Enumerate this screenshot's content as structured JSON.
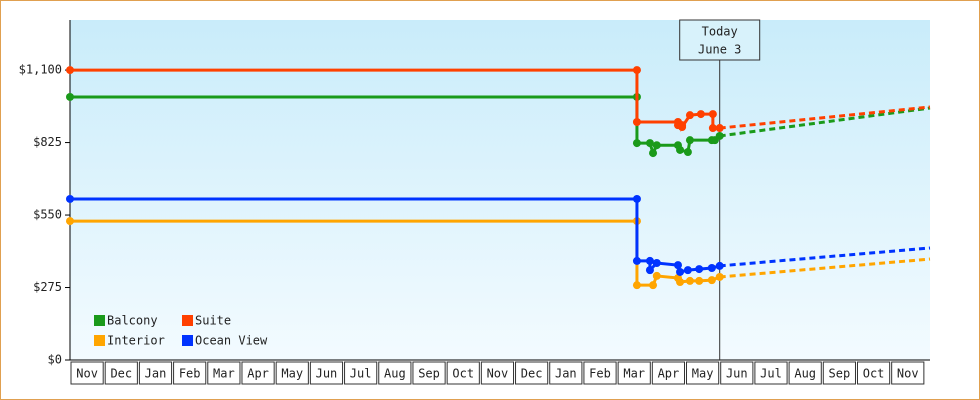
{
  "chart_data": {
    "type": "line",
    "xlim": [
      0,
      25.15
    ],
    "ylim": [
      0,
      1290
    ],
    "yticks": [
      {
        "value": 0,
        "label": "$0"
      },
      {
        "value": 275,
        "label": "$275"
      },
      {
        "value": 550,
        "label": "$550"
      },
      {
        "value": 825,
        "label": "$825"
      },
      {
        "value": 1100,
        "label": "$1,100"
      }
    ],
    "categories": [
      "Nov",
      "Dec",
      "Jan",
      "Feb",
      "Mar",
      "Apr",
      "May",
      "Jun",
      "Jul",
      "Aug",
      "Sep",
      "Oct",
      "Nov",
      "Dec",
      "Jan",
      "Feb",
      "Mar",
      "Apr",
      "May",
      "Jun",
      "Jul",
      "Aug",
      "Sep",
      "Oct",
      "Nov"
    ],
    "annotation": {
      "x": 19.0,
      "lines": [
        "Today",
        "June 3"
      ]
    },
    "legend": "lower left",
    "series": [
      {
        "name": "Balcony",
        "color": "#1a9a1a",
        "x": [
          0,
          16.58,
          16.58,
          16.96,
          17.05,
          17.16,
          17.78,
          17.84,
          18.07,
          18.13,
          18.77,
          18.86,
          19.0
        ],
        "values": [
          998,
          998,
          823,
          823,
          785,
          815,
          815,
          797,
          789,
          834,
          834,
          834,
          850
        ],
        "forecast_x": [
          19.0,
          25.15
        ],
        "forecast_values": [
          850,
          956
        ]
      },
      {
        "name": "Suite",
        "color": "#ff4000",
        "x": [
          0,
          16.58,
          16.58,
          17.78,
          17.78,
          17.9,
          17.9,
          18.13,
          18.45,
          18.8,
          18.8,
          19.0
        ],
        "values": [
          1100,
          1100,
          903,
          903,
          891,
          891,
          884,
          929,
          933,
          933,
          880,
          880
        ],
        "forecast_x": [
          19.0,
          25.15
        ],
        "forecast_values": [
          880,
          960
        ]
      },
      {
        "name": "Interior",
        "color": "#ffa500",
        "x": [
          0,
          16.58,
          16.58,
          17.05,
          17.16,
          17.78,
          17.84,
          18.13,
          18.4,
          18.77,
          19.0
        ],
        "values": [
          527,
          527,
          284,
          284,
          319,
          311,
          296,
          300,
          300,
          303,
          315
        ],
        "forecast_x": [
          19.0,
          25.15
        ],
        "forecast_values": [
          315,
          383
        ]
      },
      {
        "name": "Ocean View",
        "color": "#0033ff",
        "x": [
          0,
          16.58,
          16.58,
          16.96,
          16.96,
          17.16,
          17.78,
          17.84,
          18.07,
          18.4,
          18.77,
          19.0
        ],
        "values": [
          611,
          611,
          376,
          376,
          341,
          368,
          360,
          334,
          341,
          345,
          349,
          357
        ],
        "forecast_x": [
          19.0,
          25.15
        ],
        "forecast_values": [
          357,
          425
        ]
      }
    ]
  }
}
